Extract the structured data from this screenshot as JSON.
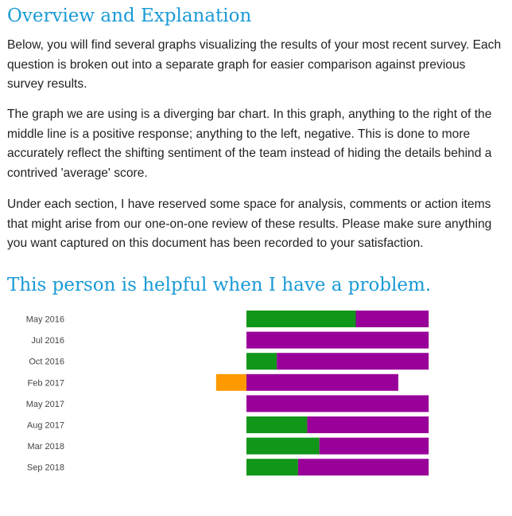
{
  "overview": {
    "title": "Overview and Explanation",
    "paragraphs": [
      "Below, you will find several graphs visualizing the results of your most recent survey. Each question is broken out into a separate graph for easier comparison against previous survey results.",
      "The graph we are using is a diverging bar chart. In this graph, anything to the right of the middle line is a positive response; anything to the left, negative. This is done to more accurately reflect the shifting sentiment of the team instead of hiding the details behind a contrived 'average' score.",
      "Under each section, I have reserved some space for analysis, comments or action items that might arise from our one-on-one review of these results. Please make sure anything you want captured on this document has been recorded to your satisfaction."
    ]
  },
  "question": {
    "title": "This person is helpful when I have a problem."
  },
  "colors": {
    "heading": "#1a9ad6",
    "negative": "#ff9900",
    "positive_green": "#109618",
    "positive_purple": "#990099"
  },
  "chart_data": {
    "type": "bar",
    "orientation": "horizontal",
    "stacked": true,
    "diverging": true,
    "categories": [
      "May 2016",
      "Jul 2016",
      "Oct 2016",
      "Feb 2017",
      "May 2017",
      "Aug 2017",
      "Mar 2018",
      "Sep 2018"
    ],
    "series": [
      {
        "color": "#ff9900",
        "side": "negative",
        "values": [
          0,
          0,
          0,
          1,
          0,
          0,
          0,
          0
        ]
      },
      {
        "color": "#109618",
        "side": "positive",
        "values": [
          3.6,
          0,
          1,
          0,
          0,
          2,
          2.4,
          1.7
        ]
      },
      {
        "color": "#990099",
        "side": "positive",
        "values": [
          2.4,
          6,
          5,
          5,
          6,
          4,
          3.6,
          4.3
        ]
      }
    ],
    "xlim": [
      -1,
      6
    ],
    "legend": "none",
    "grid": false
  }
}
